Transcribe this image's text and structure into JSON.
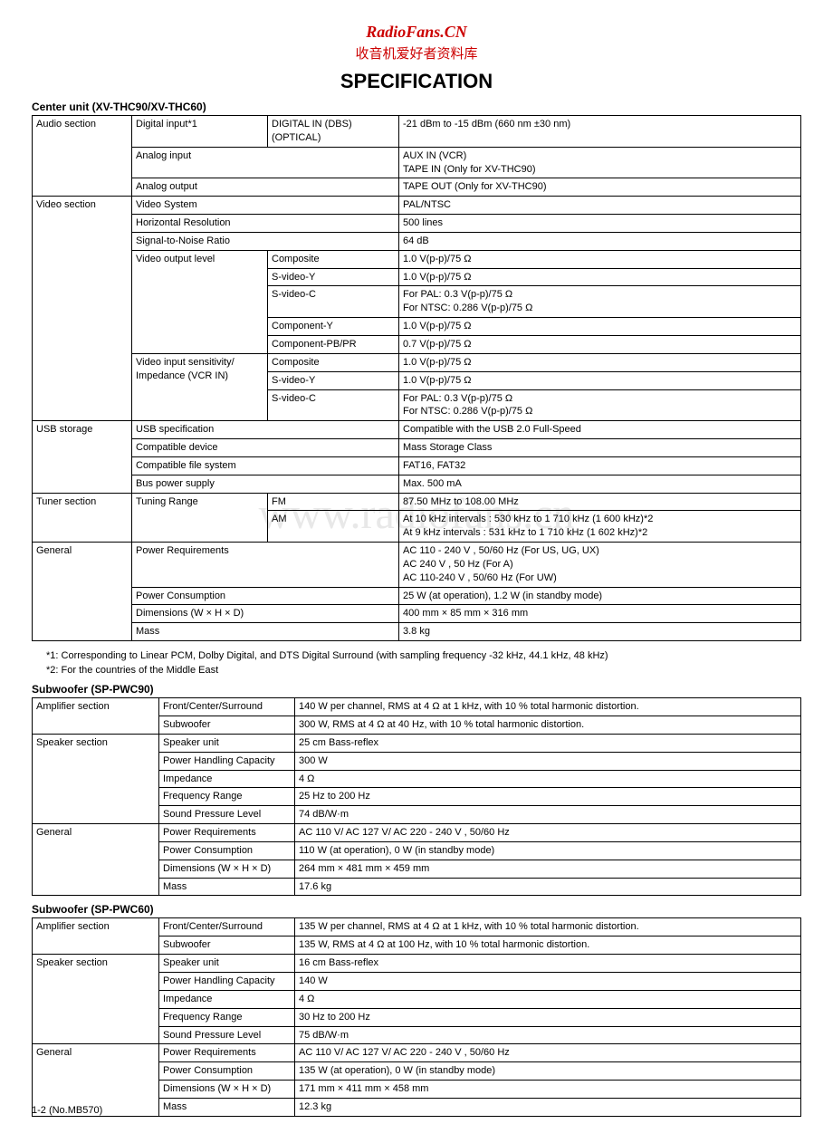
{
  "header": {
    "brand": "RadioFans.CN",
    "cn": "收音机爱好者资料库",
    "title": "SPECIFICATION"
  },
  "watermark": "www.radiofans.cn",
  "footer": "1-2 (No.MB570)",
  "footnotes": {
    "f1": "*1: Corresponding to Linear PCM, Dolby Digital, and DTS Digital Surround (with sampling frequency -32 kHz, 44.1 kHz, 48 kHz)",
    "f2": "*2: For the countries of the Middle East"
  },
  "centerUnit": {
    "title": "Center unit (XV-THC90/XV-THC60)",
    "sections": {
      "audio": "Audio section",
      "video": "Video section",
      "usb": "USB storage",
      "tuner": "Tuner section",
      "general": "General"
    },
    "rows": {
      "r1a": "Digital input*1",
      "r1b": "DIGITAL IN (DBS) (OPTICAL)",
      "r1c": "-21 dBm to -15 dBm (660 nm ±30 nm)",
      "r2a": "Analog input",
      "r2c": "AUX IN (VCR)\nTAPE IN (Only for XV-THC90)",
      "r3a": "Analog output",
      "r3c": "TAPE OUT (Only for XV-THC90)",
      "r4a": "Video System",
      "r4c": "PAL/NTSC",
      "r5a": "Horizontal Resolution",
      "r5c": "500 lines",
      "r6a": "Signal-to-Noise Ratio",
      "r6c": "64 dB",
      "r7a": "Video output level",
      "r7b": "Composite",
      "r7c": "1.0 V(p-p)/75 Ω",
      "r8b": "S-video-Y",
      "r8c": "1.0 V(p-p)/75 Ω",
      "r9b": "S-video-C",
      "r9c": "For PAL: 0.3 V(p-p)/75 Ω\nFor NTSC: 0.286 V(p-p)/75 Ω",
      "r10b": "Component-Y",
      "r10c": "1.0 V(p-p)/75 Ω",
      "r11b": "Component-PB/PR",
      "r11c": "0.7 V(p-p)/75 Ω",
      "r12a": "Video input sensitivity/\nImpedance (VCR IN)",
      "r12b": "Composite",
      "r12c": "1.0 V(p-p)/75 Ω",
      "r13b": "S-video-Y",
      "r13c": "1.0 V(p-p)/75 Ω",
      "r14b": "S-video-C",
      "r14c": "For PAL: 0.3 V(p-p)/75 Ω\nFor NTSC: 0.286 V(p-p)/75 Ω",
      "r15a": "USB specification",
      "r15c": "Compatible with the USB 2.0 Full-Speed",
      "r16a": "Compatible device",
      "r16c": "Mass Storage Class",
      "r17a": "Compatible file system",
      "r17c": "FAT16, FAT32",
      "r18a": "Bus power supply",
      "r18c": "Max. 500 mA",
      "r19a": "Tuning Range",
      "r19b": "FM",
      "r19c": "87.50 MHz to 108.00 MHz",
      "r20b": "AM",
      "r20c": "At 10 kHz intervals : 530 kHz to 1 710 kHz (1 600 kHz)*2\nAt 9 kHz intervals : 531 kHz to 1 710 kHz (1 602 kHz)*2",
      "r21a": "Power Requirements",
      "r21c": "AC 110 - 240 V , 50/60 Hz (For US, UG, UX)\nAC 240 V , 50 Hz (For A)\nAC 110-240 V , 50/60 Hz (For UW)",
      "r22a": "Power Consumption",
      "r22c": "25 W (at operation), 1.2 W (in standby mode)",
      "r23a": "Dimensions (W × H × D)",
      "r23c": "400 mm × 85 mm × 316 mm",
      "r24a": "Mass",
      "r24c": "3.8 kg"
    }
  },
  "sub90": {
    "title": "Subwoofer (SP-PWC90)",
    "sections": {
      "amp": "Amplifier section",
      "spk": "Speaker section",
      "gen": "General"
    },
    "rows": {
      "r1a": "Front/Center/Surround",
      "r1b": "140 W per channel, RMS at 4 Ω at 1 kHz, with 10 % total harmonic distortion.",
      "r2a": "Subwoofer",
      "r2b": "300 W, RMS at 4 Ω at 40 Hz, with 10 % total harmonic distortion.",
      "r3a": "Speaker unit",
      "r3b": "25 cm Bass-reflex",
      "r4a": "Power Handling Capacity",
      "r4b": "300 W",
      "r5a": "Impedance",
      "r5b": "4 Ω",
      "r6a": "Frequency Range",
      "r6b": "25 Hz to 200 Hz",
      "r7a": "Sound Pressure Level",
      "r7b": "74 dB/W·m",
      "r8a": "Power Requirements",
      "r8b": "AC 110 V/ AC 127 V/ AC 220 - 240 V , 50/60 Hz",
      "r9a": "Power Consumption",
      "r9b": "110 W (at operation), 0 W (in standby mode)",
      "r10a": "Dimensions (W × H × D)",
      "r10b": "264 mm × 481 mm × 459 mm",
      "r11a": "Mass",
      "r11b": "17.6 kg"
    }
  },
  "sub60": {
    "title": "Subwoofer (SP-PWC60)",
    "sections": {
      "amp": "Amplifier section",
      "spk": "Speaker section",
      "gen": "General"
    },
    "rows": {
      "r1a": "Front/Center/Surround",
      "r1b": "135 W per channel, RMS at 4 Ω at 1 kHz, with 10 % total harmonic distortion.",
      "r2a": "Subwoofer",
      "r2b": "135 W, RMS at 4 Ω at 100 Hz, with 10 % total harmonic distortion.",
      "r3a": "Speaker unit",
      "r3b": "16 cm Bass-reflex",
      "r4a": "Power Handling Capacity",
      "r4b": "140 W",
      "r5a": "Impedance",
      "r5b": "4 Ω",
      "r6a": "Frequency Range",
      "r6b": "30 Hz to 200 Hz",
      "r7a": "Sound Pressure Level",
      "r7b": "75 dB/W·m",
      "r8a": "Power Requirements",
      "r8b": "AC 110 V/ AC 127 V/ AC 220 - 240 V , 50/60 Hz",
      "r9a": "Power Consumption",
      "r9b": "135 W (at operation), 0 W (in standby mode)",
      "r10a": "Dimensions (W × H × D)",
      "r10b": "171 mm × 411 mm × 458 mm",
      "r11a": "Mass",
      "r11b": "12.3 kg"
    }
  }
}
